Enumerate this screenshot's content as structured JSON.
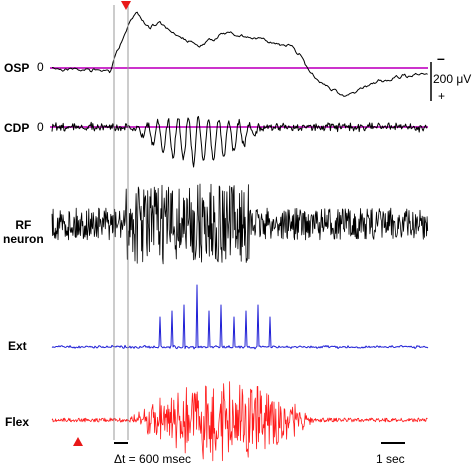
{
  "chart_data": {
    "type": "line",
    "traces": [
      {
        "id": "osp",
        "label": "OSP",
        "zero_label": "0",
        "color": "#000000",
        "has_zero_line": true
      },
      {
        "id": "cdp",
        "label": "CDP",
        "zero_label": "0",
        "color": "#000000",
        "has_zero_line": true
      },
      {
        "id": "rf",
        "label": "RF\nneuron",
        "color": "#000000",
        "has_zero_line": false
      },
      {
        "id": "ext",
        "label": "Ext",
        "color": "#1f1fd6",
        "has_zero_line": false
      },
      {
        "id": "flex",
        "label": "Flex",
        "color": "#ff1a1a",
        "has_zero_line": false
      }
    ],
    "zero_line_color": "#cc33cc",
    "marker_color": "#e81818",
    "scale_bar": {
      "top_sign": "–",
      "value": "200 μV",
      "bottom_sign": "+"
    },
    "delta_label": "Δt = 600 msec",
    "time_scale": "1 sec"
  }
}
